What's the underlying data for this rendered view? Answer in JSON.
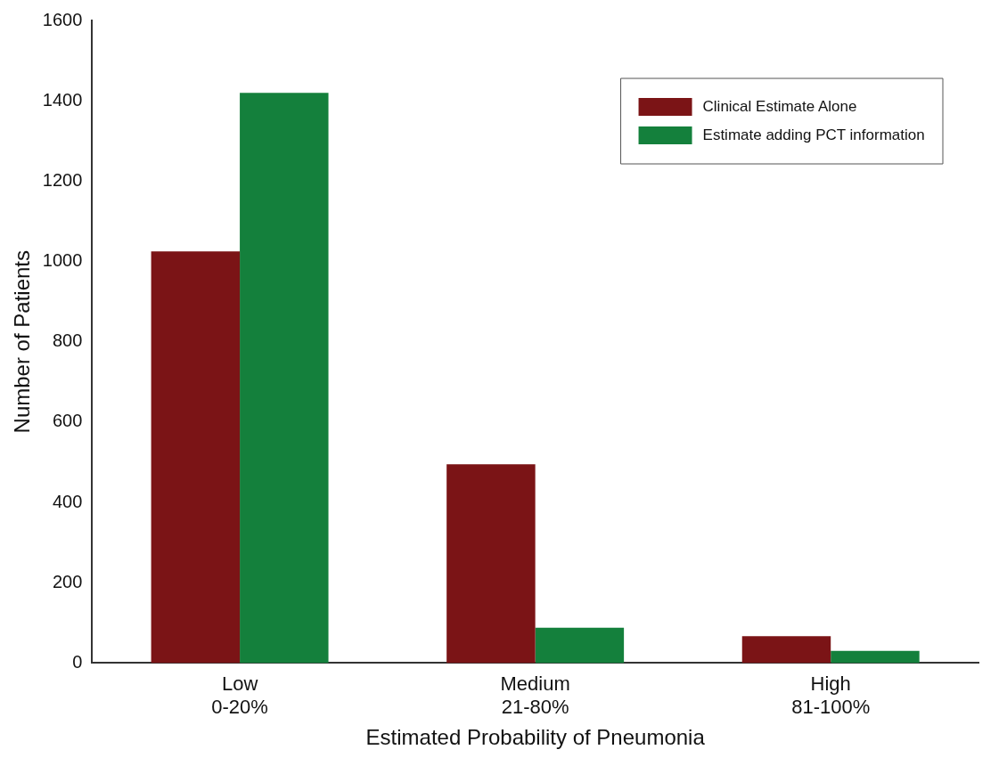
{
  "chart_data": {
    "type": "bar",
    "xlabel": "Estimated Probability of Pneumonia",
    "ylabel": "Number of Patients",
    "categories": [
      "Low\n0-20%",
      "Medium\n21-80%",
      "High\n81-100%"
    ],
    "series": [
      {
        "name": "Clinical Estimate Alone",
        "color": "#7b1416",
        "values": [
          1025,
          495,
          67
        ]
      },
      {
        "name": "Estimate adding PCT information",
        "color": "#14803c",
        "values": [
          1420,
          88,
          30
        ]
      }
    ],
    "ylim": [
      0,
      1600
    ],
    "yticks": [
      0,
      200,
      400,
      600,
      800,
      1000,
      1200,
      1400,
      1600
    ],
    "grid": false,
    "legend": "top right"
  }
}
